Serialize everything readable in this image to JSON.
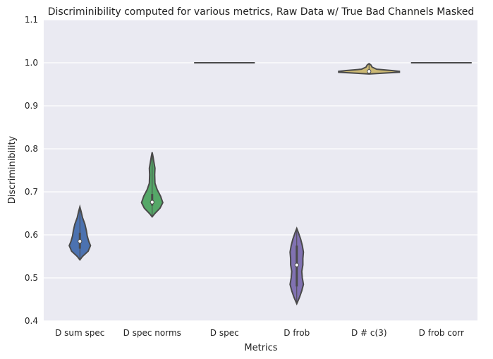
{
  "chart_data": {
    "type": "violin",
    "title": "Discriminibility computed for various metrics, Raw Data w/ True Bad Channels Masked",
    "xlabel": "Metrics",
    "ylabel": "Discriminibility",
    "ylim": [
      0.4,
      1.1
    ],
    "yticks": [
      0.4,
      0.5,
      0.6,
      0.7,
      0.8,
      0.9,
      1.0,
      1.1
    ],
    "ytick_labels": [
      "0.4",
      "0.5",
      "0.6",
      "0.7",
      "0.8",
      "0.9",
      "1.0",
      "1.1"
    ],
    "grid": true,
    "categories": [
      "D sum spec",
      "D spec norms",
      "D spec",
      "D frob",
      "D # c(3)",
      "D frob corr"
    ],
    "series": [
      {
        "category": "D sum spec",
        "color": "#4c72b0",
        "min": 0.542,
        "max": 0.665,
        "median": 0.585,
        "q1": 0.568,
        "q3": 0.605,
        "density": [
          [
            0.542,
            0.0
          ],
          [
            0.55,
            0.09
          ],
          [
            0.562,
            0.28
          ],
          [
            0.575,
            0.36
          ],
          [
            0.585,
            0.3
          ],
          [
            0.597,
            0.25
          ],
          [
            0.61,
            0.22
          ],
          [
            0.625,
            0.17
          ],
          [
            0.64,
            0.09
          ],
          [
            0.655,
            0.04
          ],
          [
            0.665,
            0.0
          ]
        ]
      },
      {
        "category": "D spec norms",
        "color": "#55a868",
        "min": 0.642,
        "max": 0.792,
        "median": 0.676,
        "q1": 0.668,
        "q3": 0.695,
        "density": [
          [
            0.642,
            0.0
          ],
          [
            0.65,
            0.1
          ],
          [
            0.662,
            0.28
          ],
          [
            0.675,
            0.38
          ],
          [
            0.69,
            0.3
          ],
          [
            0.705,
            0.18
          ],
          [
            0.72,
            0.1
          ],
          [
            0.74,
            0.09
          ],
          [
            0.755,
            0.1
          ],
          [
            0.77,
            0.06
          ],
          [
            0.782,
            0.03
          ],
          [
            0.792,
            0.0
          ]
        ]
      },
      {
        "category": "D spec",
        "color": "#c44e52",
        "min": 1.0,
        "max": 1.0,
        "median": 1.0
      },
      {
        "category": "D frob",
        "color": "#8172b2",
        "min": 0.44,
        "max": 0.615,
        "median": 0.53,
        "q1": 0.48,
        "q3": 0.575,
        "density": [
          [
            0.44,
            0.0
          ],
          [
            0.455,
            0.05
          ],
          [
            0.47,
            0.09
          ],
          [
            0.485,
            0.12
          ],
          [
            0.5,
            0.1
          ],
          [
            0.515,
            0.09
          ],
          [
            0.53,
            0.11
          ],
          [
            0.545,
            0.11
          ],
          [
            0.56,
            0.12
          ],
          [
            0.575,
            0.1
          ],
          [
            0.59,
            0.07
          ],
          [
            0.605,
            0.03
          ],
          [
            0.615,
            0.0
          ]
        ]
      },
      {
        "category": "D # c(3)",
        "color": "#ccb974",
        "min": 0.974,
        "max": 0.998,
        "median": 0.98,
        "q1": 0.978,
        "q3": 0.984,
        "density": [
          [
            0.974,
            0.0
          ],
          [
            0.976,
            0.5
          ],
          [
            0.978,
            1.0
          ],
          [
            0.98,
            1.0
          ],
          [
            0.982,
            0.75
          ],
          [
            0.985,
            0.25
          ],
          [
            0.99,
            0.1
          ],
          [
            0.995,
            0.06
          ],
          [
            0.998,
            0.0
          ]
        ]
      },
      {
        "category": "D frob corr",
        "color": "#64b5cd",
        "min": 1.0,
        "max": 1.0,
        "median": 1.0
      }
    ]
  }
}
